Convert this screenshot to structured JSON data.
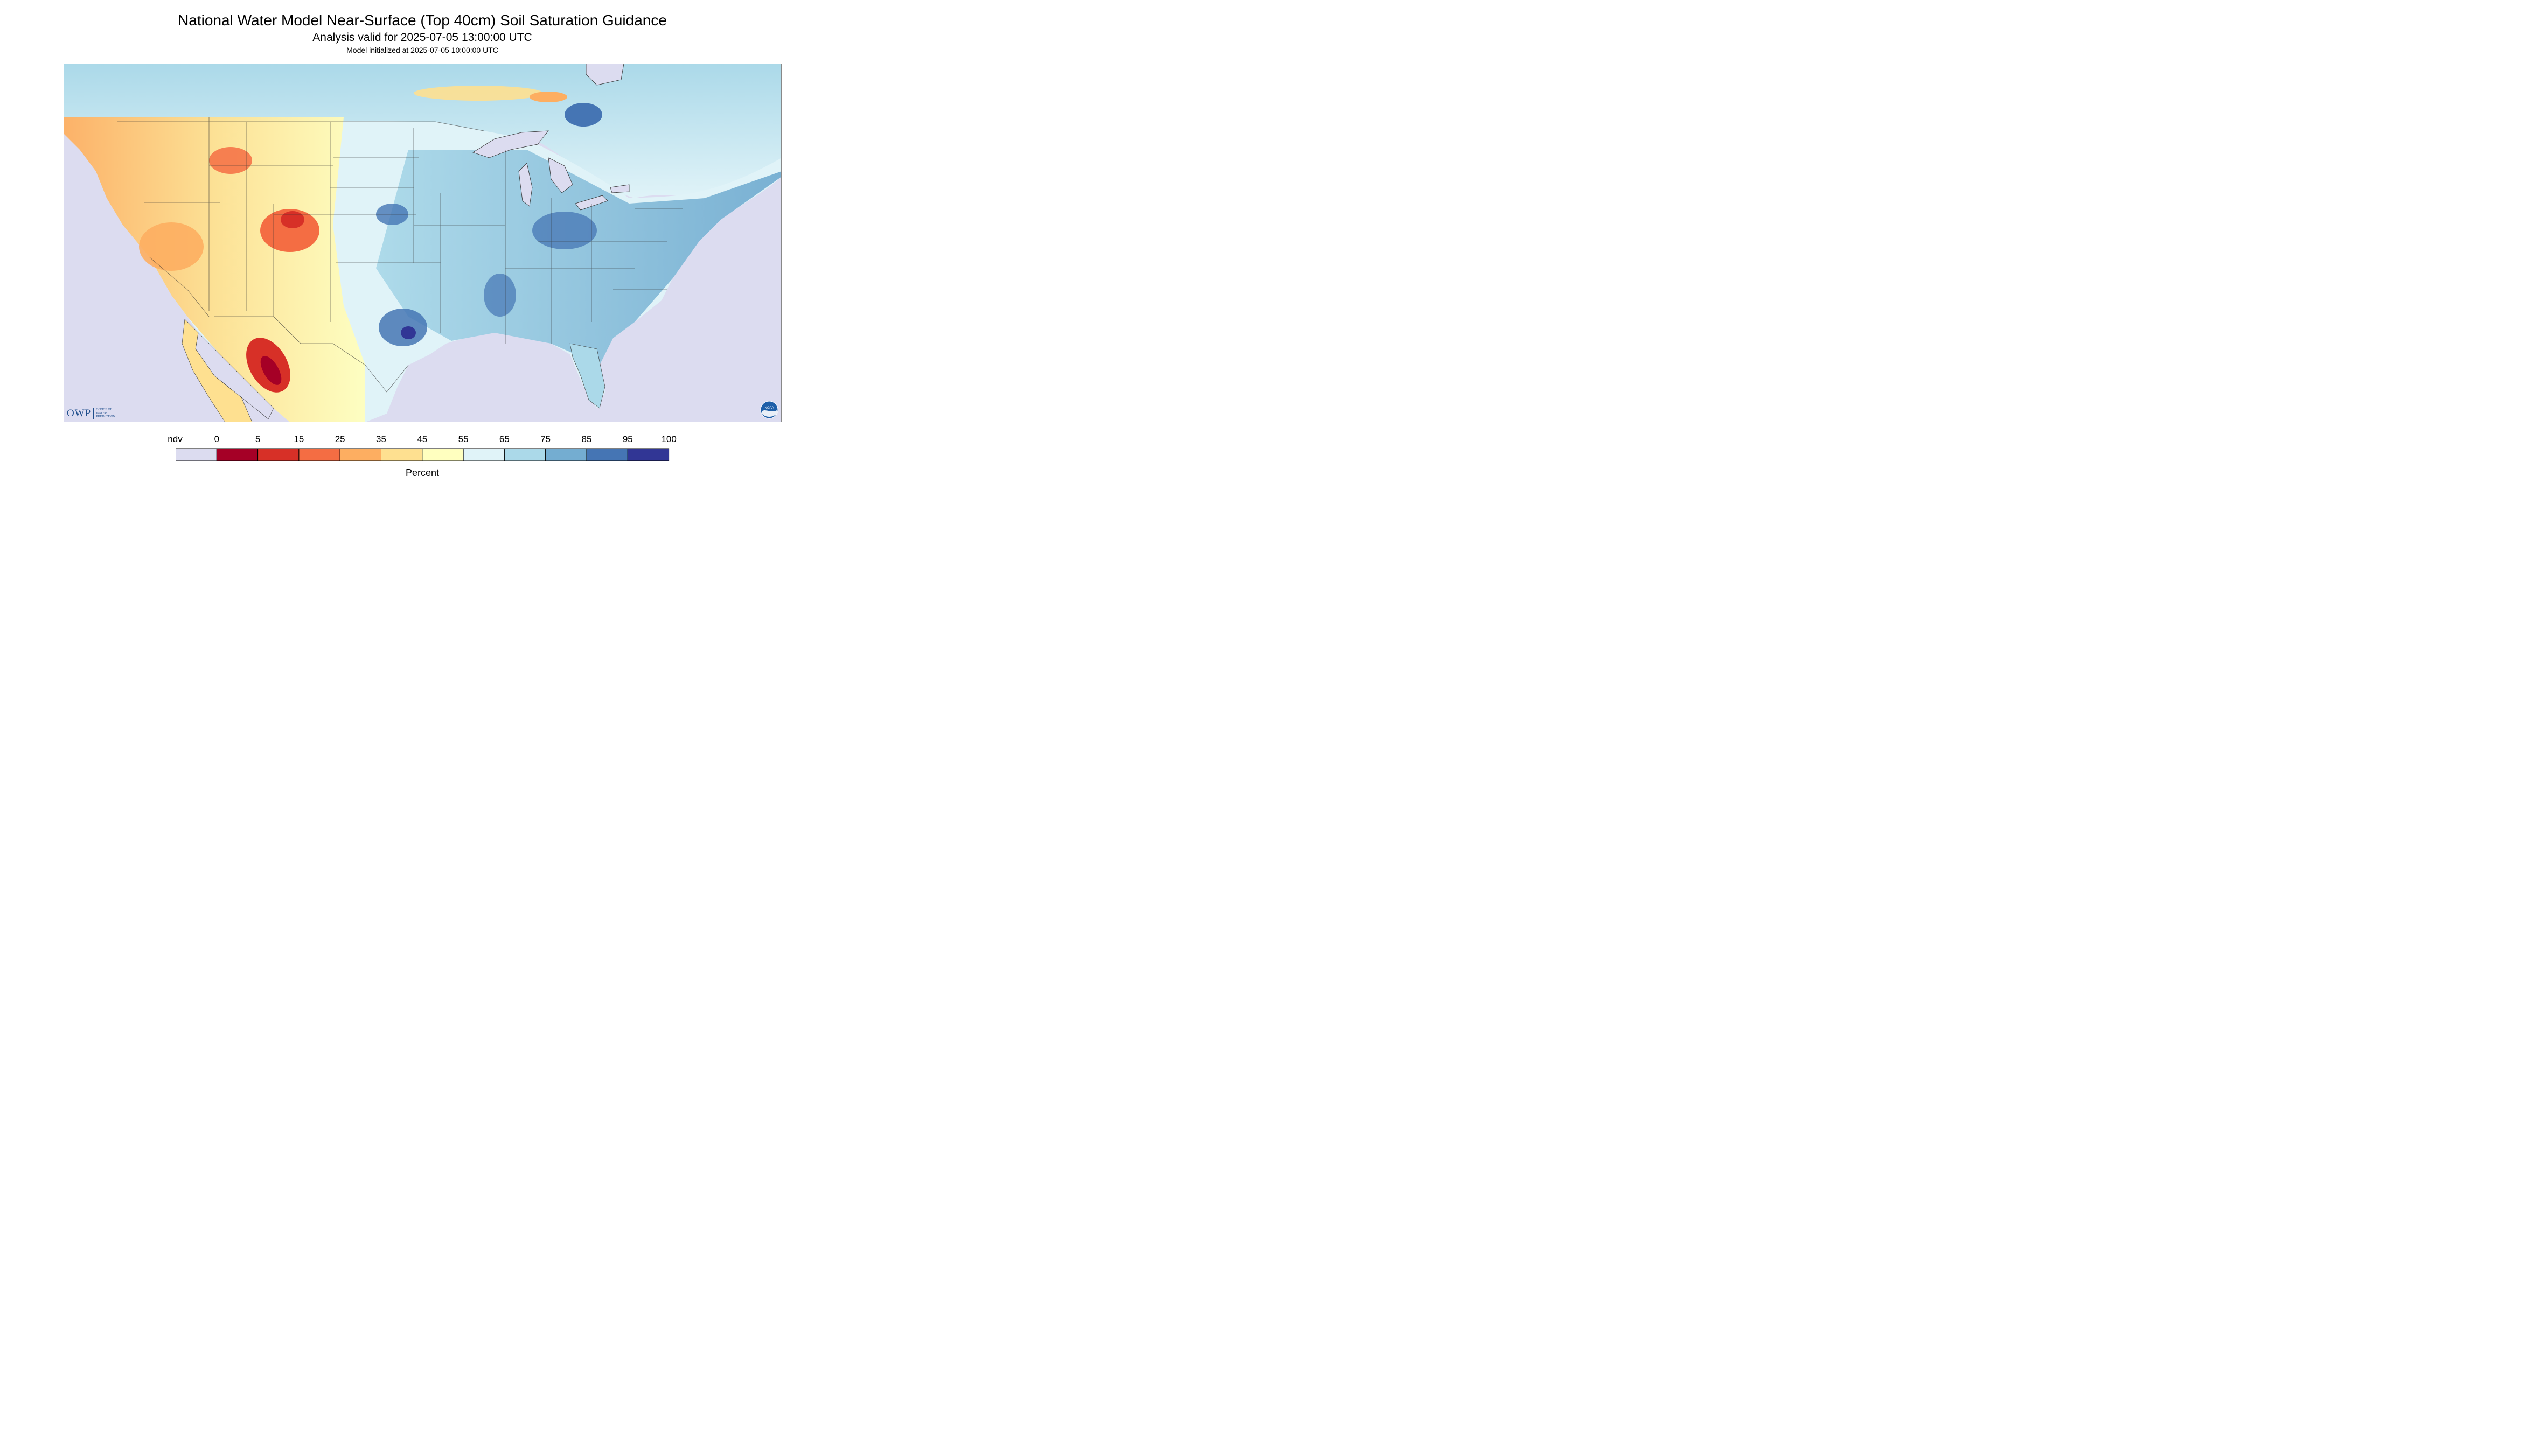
{
  "title": "National Water Model Near-Surface (Top 40cm) Soil Saturation Guidance",
  "subtitle": "Analysis valid for 2025-07-05 13:00:00 UTC",
  "init_line": "Model initialized at 2025-07-05 10:00:00 UTC",
  "logos": {
    "owp_mark": "OWP",
    "owp_words": [
      "OFFICE OF",
      "WATER",
      "PREDICTION"
    ],
    "noaa": "NOAA"
  },
  "legend": {
    "units": "Percent",
    "tick_labels": [
      "ndv",
      "0",
      "5",
      "15",
      "25",
      "35",
      "45",
      "55",
      "65",
      "75",
      "85",
      "95",
      "100"
    ],
    "bins": [
      {
        "label": "ndv",
        "color": "#dcdcf0"
      },
      {
        "label": "0-5",
        "color": "#a50026"
      },
      {
        "label": "5-15",
        "color": "#d73027"
      },
      {
        "label": "15-25",
        "color": "#f46d43"
      },
      {
        "label": "25-35",
        "color": "#fdae61"
      },
      {
        "label": "35-45",
        "color": "#fee090"
      },
      {
        "label": "45-55",
        "color": "#ffffbf"
      },
      {
        "label": "55-65",
        "color": "#e0f3f8"
      },
      {
        "label": "65-75",
        "color": "#abd9e9"
      },
      {
        "label": "75-85",
        "color": "#74add1"
      },
      {
        "label": "85-95",
        "color": "#4575b4"
      },
      {
        "label": "95-100",
        "color": "#313695"
      }
    ]
  },
  "colors": {
    "nodata": "#dcdcf0",
    "water": "#dcdcf0",
    "border": "#333333"
  }
}
